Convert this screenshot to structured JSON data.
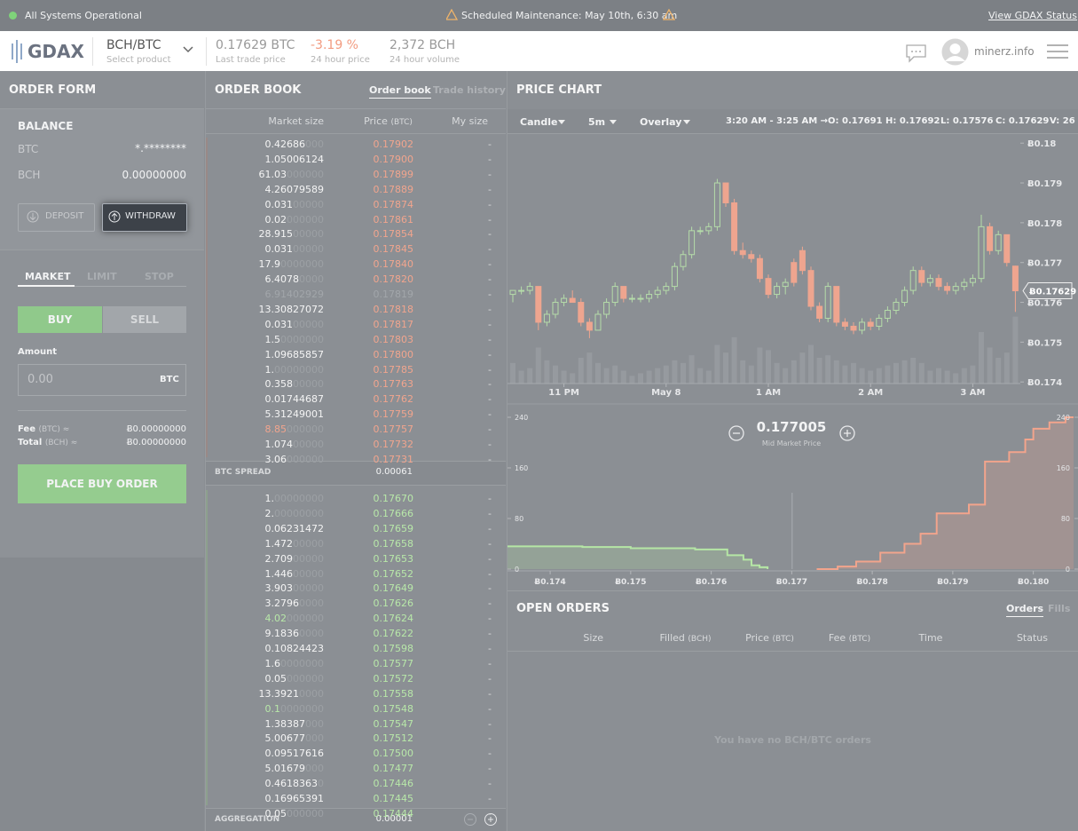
{
  "status_bar": {
    "status": "All Systems Operational",
    "maintenance": "Scheduled Maintenance: May 10th, 6:30 am",
    "link": "View GDAX Status"
  },
  "header": {
    "logo": "GDAX",
    "product": "BCH/BTC",
    "product_sub": "Select product",
    "last_price": "0.17629 BTC",
    "last_price_label": "Last trade price",
    "change": "-3.19 %",
    "change_label": "24 hour price",
    "volume": "2,372 BCH",
    "volume_label": "24 hour volume",
    "user": "minerz.info"
  },
  "order_form": {
    "title": "ORDER FORM",
    "balance_title": "BALANCE",
    "balances": [
      [
        "BTC",
        "*.********"
      ],
      [
        "BCH",
        "0.00000000"
      ]
    ],
    "deposit": "DEPOSIT",
    "withdraw": "WITHDRAW",
    "tabs": [
      "MARKET",
      "LIMIT",
      "STOP"
    ],
    "buy": "BUY",
    "sell": "SELL",
    "amount_label": "Amount",
    "amount_placeholder": "0.00",
    "amount_unit": "BTC",
    "fee_label": "Fee",
    "fee_unit": "(BTC) ≈",
    "fee": "Ƀ0.00000000",
    "total_label": "Total",
    "total_unit": "(BCH) ≈",
    "total": "Ƀ0.00000000",
    "place": "PLACE BUY ORDER"
  },
  "order_book": {
    "title": "ORDER BOOK",
    "tabs": [
      "Order book",
      "Trade history"
    ],
    "columns": [
      {
        "label": "Market size"
      },
      {
        "label": "Price",
        "unit": "(BTC)"
      },
      {
        "label": "My size"
      }
    ],
    "asks": [
      {
        "size": "0.42686000",
        "price": "0.17902",
        "my": "-"
      },
      {
        "size": "1.05006124",
        "price": "0.17900",
        "my": "-"
      },
      {
        "size": "61.03000000",
        "price": "0.17899",
        "my": "-"
      },
      {
        "size": "4.26079589",
        "price": "0.17889",
        "my": "-"
      },
      {
        "size": "0.03100000",
        "price": "0.17874",
        "my": "-"
      },
      {
        "size": "0.02000000",
        "price": "0.17861",
        "my": "-"
      },
      {
        "size": "28.91500000",
        "price": "0.17854",
        "my": "-"
      },
      {
        "size": "0.03100000",
        "price": "0.17845",
        "my": "-"
      },
      {
        "size": "17.90000000",
        "price": "0.17840",
        "my": "-"
      },
      {
        "size": "6.40780000",
        "price": "0.17820",
        "my": "-"
      },
      {
        "size": "6.91402929",
        "price": "0.17819",
        "my": "-",
        "faded": true
      },
      {
        "size": "13.30827072",
        "price": "0.17818",
        "my": "-"
      },
      {
        "size": "0.03100000",
        "price": "0.17817",
        "my": "-"
      },
      {
        "size": "1.50000000",
        "price": "0.17803",
        "my": "-"
      },
      {
        "size": "1.09685857",
        "price": "0.17800",
        "my": "-"
      },
      {
        "size": "1.00000000",
        "price": "0.17785",
        "my": "-"
      },
      {
        "size": "0.35800000",
        "price": "0.17763",
        "my": "-"
      },
      {
        "size": "0.01744687",
        "price": "0.17762",
        "my": "-"
      },
      {
        "size": "5.31249001",
        "price": "0.17759",
        "my": "-"
      },
      {
        "size": "8.85000000",
        "price": "0.17757",
        "my": "-",
        "highlight": true
      },
      {
        "size": "1.07400000",
        "price": "0.17732",
        "my": "-"
      },
      {
        "size": "3.06000000",
        "price": "0.17731",
        "my": "-"
      }
    ],
    "spread_label": "BTC SPREAD",
    "spread": "0.00061",
    "bids": [
      {
        "size": "1.00000000",
        "price": "0.17670",
        "my": "-"
      },
      {
        "size": "2.00000000",
        "price": "0.17666",
        "my": "-"
      },
      {
        "size": "0.06231472",
        "price": "0.17659",
        "my": "-"
      },
      {
        "size": "1.47200000",
        "price": "0.17658",
        "my": "-"
      },
      {
        "size": "2.70900000",
        "price": "0.17653",
        "my": "-"
      },
      {
        "size": "1.44600000",
        "price": "0.17652",
        "my": "-"
      },
      {
        "size": "3.90300000",
        "price": "0.17649",
        "my": "-"
      },
      {
        "size": "3.27960000",
        "price": "0.17626",
        "my": "-"
      },
      {
        "size": "4.02000000",
        "price": "0.17624",
        "my": "-",
        "highlight": true
      },
      {
        "size": "9.18360000",
        "price": "0.17622",
        "my": "-"
      },
      {
        "size": "0.10824423",
        "price": "0.17598",
        "my": "-"
      },
      {
        "size": "1.60000000",
        "price": "0.17577",
        "my": "-"
      },
      {
        "size": "0.05000000",
        "price": "0.17572",
        "my": "-"
      },
      {
        "size": "13.39210000",
        "price": "0.17558",
        "my": "-"
      },
      {
        "size": "0.10000000",
        "price": "0.17548",
        "my": "-",
        "highlight": true
      },
      {
        "size": "1.38387000",
        "price": "0.17547",
        "my": "-"
      },
      {
        "size": "5.00677000",
        "price": "0.17512",
        "my": "-"
      },
      {
        "size": "0.09517616",
        "price": "0.17500",
        "my": "-"
      },
      {
        "size": "5.01679000",
        "price": "0.17477",
        "my": "-"
      },
      {
        "size": "0.46183630",
        "price": "0.17446",
        "my": "-"
      },
      {
        "size": "0.16965391",
        "price": "0.17445",
        "my": "-"
      },
      {
        "size": "0.05000000",
        "price": "0.17444",
        "my": "-"
      }
    ],
    "aggregation_label": "AGGREGATION",
    "aggregation": "0.00001"
  },
  "price_chart": {
    "title": "PRICE CHART",
    "type": "candlestick",
    "toolbar": [
      "Candle",
      "5m",
      "Overlay"
    ],
    "range": "3:20 AM - 3:25 AM →",
    "ohlcv": [
      "O: 0.17691",
      "H: 0.17692",
      "L: 0.17576",
      "C: 0.17629",
      "V: 26"
    ],
    "up_color": "#b5dca9",
    "down_color": "#eea58f",
    "volume_color": "#9a9ea3",
    "ylim": [
      0.17396,
      0.18025
    ],
    "yticks": [
      {
        "value": 0.18,
        "label": "Ƀ0.18"
      },
      {
        "value": 0.179,
        "label": "Ƀ0.179"
      },
      {
        "value": 0.178,
        "label": "Ƀ0.178"
      },
      {
        "value": 0.177,
        "label": "Ƀ0.177"
      },
      {
        "value": 0.176,
        "label": "Ƀ0.176"
      },
      {
        "value": 0.175,
        "label": "Ƀ0.175"
      },
      {
        "value": 0.174,
        "label": "Ƀ0.174"
      }
    ],
    "last_price": {
      "value": 0.17629,
      "label": "Ƀ0.17629"
    },
    "xticks": [
      {
        "value": 6,
        "label": "11 PM"
      },
      {
        "value": 18,
        "label": "May 8"
      },
      {
        "value": 30,
        "label": "1 AM"
      },
      {
        "value": 42,
        "label": "2 AM"
      },
      {
        "value": 54,
        "label": "3 AM"
      }
    ],
    "candles": [
      [
        0.1762,
        0.1763,
        0.176,
        0.1763,
        8
      ],
      [
        0.1763,
        0.1764,
        0.1762,
        0.1763,
        5
      ],
      [
        0.1763,
        0.1765,
        0.1762,
        0.1764,
        6
      ],
      [
        0.1764,
        0.1764,
        0.1753,
        0.1755,
        14
      ],
      [
        0.1755,
        0.1758,
        0.1754,
        0.1757,
        9
      ],
      [
        0.1757,
        0.1761,
        0.1756,
        0.176,
        7
      ],
      [
        0.176,
        0.1762,
        0.1759,
        0.1761,
        5
      ],
      [
        0.1761,
        0.1763,
        0.176,
        0.176,
        4
      ],
      [
        0.176,
        0.1761,
        0.1754,
        0.1755,
        10
      ],
      [
        0.1755,
        0.1756,
        0.1751,
        0.1753,
        12
      ],
      [
        0.1753,
        0.1758,
        0.1753,
        0.1757,
        8
      ],
      [
        0.1757,
        0.1761,
        0.1756,
        0.176,
        6
      ],
      [
        0.176,
        0.1765,
        0.1759,
        0.1764,
        7
      ],
      [
        0.1764,
        0.1764,
        0.176,
        0.1761,
        5
      ],
      [
        0.1761,
        0.1762,
        0.176,
        0.1761,
        3
      ],
      [
        0.1761,
        0.1762,
        0.176,
        0.1761,
        4
      ],
      [
        0.1761,
        0.1763,
        0.176,
        0.1762,
        5
      ],
      [
        0.1762,
        0.1764,
        0.1761,
        0.1763,
        6
      ],
      [
        0.1763,
        0.1765,
        0.1762,
        0.1764,
        7
      ],
      [
        0.1764,
        0.177,
        0.1763,
        0.1769,
        9
      ],
      [
        0.1769,
        0.1773,
        0.1768,
        0.1772,
        8
      ],
      [
        0.1772,
        0.1779,
        0.1771,
        0.1778,
        11
      ],
      [
        0.1778,
        0.1779,
        0.1777,
        0.1778,
        6
      ],
      [
        0.1778,
        0.178,
        0.1777,
        0.1779,
        5
      ],
      [
        0.1779,
        0.1791,
        0.1778,
        0.179,
        15
      ],
      [
        0.179,
        0.179,
        0.1784,
        0.1785,
        12
      ],
      [
        0.1785,
        0.1786,
        0.1772,
        0.1773,
        18
      ],
      [
        0.1773,
        0.1775,
        0.1771,
        0.1772,
        9
      ],
      [
        0.1772,
        0.1773,
        0.177,
        0.1771,
        7
      ],
      [
        0.1771,
        0.1772,
        0.1765,
        0.1766,
        14
      ],
      [
        0.1766,
        0.1767,
        0.1761,
        0.1762,
        13
      ],
      [
        0.1762,
        0.1765,
        0.1761,
        0.1764,
        8
      ],
      [
        0.1764,
        0.1766,
        0.1762,
        0.1765,
        6
      ],
      [
        0.177,
        0.1771,
        0.1764,
        0.1765,
        9
      ],
      [
        0.1773,
        0.1774,
        0.1767,
        0.1768,
        12
      ],
      [
        0.1768,
        0.1769,
        0.1758,
        0.1759,
        15
      ],
      [
        0.1759,
        0.176,
        0.1755,
        0.1756,
        10
      ],
      [
        0.1756,
        0.1765,
        0.1755,
        0.1764,
        11
      ],
      [
        0.1764,
        0.1764,
        0.1754,
        0.1755,
        9
      ],
      [
        0.1755,
        0.1756,
        0.1753,
        0.1754,
        7
      ],
      [
        0.1754,
        0.1755,
        0.1752,
        0.1753,
        8
      ],
      [
        0.1753,
        0.1756,
        0.1752,
        0.1755,
        6
      ],
      [
        0.1755,
        0.1756,
        0.1753,
        0.1754,
        5
      ],
      [
        0.1754,
        0.1757,
        0.1753,
        0.1756,
        6
      ],
      [
        0.1756,
        0.1759,
        0.1755,
        0.1758,
        7
      ],
      [
        0.1758,
        0.1761,
        0.1757,
        0.176,
        8
      ],
      [
        0.176,
        0.1764,
        0.1759,
        0.1763,
        9
      ],
      [
        0.1763,
        0.1769,
        0.1762,
        0.1768,
        10
      ],
      [
        0.1768,
        0.1769,
        0.1764,
        0.1765,
        8
      ],
      [
        0.1765,
        0.1767,
        0.1764,
        0.1766,
        5
      ],
      [
        0.1766,
        0.1767,
        0.1763,
        0.1764,
        6
      ],
      [
        0.1764,
        0.1765,
        0.1762,
        0.1763,
        5
      ],
      [
        0.1763,
        0.1765,
        0.1762,
        0.1764,
        4
      ],
      [
        0.1764,
        0.1766,
        0.1763,
        0.1765,
        6
      ],
      [
        0.1765,
        0.1767,
        0.1764,
        0.1766,
        7
      ],
      [
        0.1766,
        0.1782,
        0.1765,
        0.1779,
        20
      ],
      [
        0.1779,
        0.178,
        0.1772,
        0.1773,
        14
      ],
      [
        0.1773,
        0.1778,
        0.1772,
        0.1777,
        10
      ],
      [
        0.1777,
        0.1777,
        0.1769,
        0.177,
        12
      ],
      [
        0.17691,
        0.17692,
        0.17576,
        0.17629,
        26
      ]
    ]
  },
  "depth_chart": {
    "type": "depth",
    "mid_price": "0.177005",
    "mid_label": "Mid Market Price",
    "xlim": [
      0.17347,
      0.1805
    ],
    "xticks": [
      {
        "value": 0.174,
        "label": "Ƀ0.174"
      },
      {
        "value": 0.175,
        "label": "Ƀ0.175"
      },
      {
        "value": 0.176,
        "label": "Ƀ0.176"
      },
      {
        "value": 0.177,
        "label": "Ƀ0.177"
      },
      {
        "value": 0.178,
        "label": "Ƀ0.178"
      },
      {
        "value": 0.179,
        "label": "Ƀ0.179"
      },
      {
        "value": 0.18,
        "label": "Ƀ0.180"
      }
    ],
    "ylim": [
      0,
      240
    ],
    "yticks": [
      0,
      80,
      160,
      240
    ],
    "bids": {
      "color": "#b5e6a5",
      "points": [
        [
          0.17347,
          36
        ],
        [
          0.1744,
          35
        ],
        [
          0.175,
          33
        ],
        [
          0.1758,
          31
        ],
        [
          0.1762,
          22
        ],
        [
          0.1764,
          15
        ],
        [
          0.1765,
          6
        ],
        [
          0.1766,
          3
        ],
        [
          0.1767,
          0
        ]
      ]
    },
    "asks": {
      "color": "#f2a48c",
      "points": [
        [
          0.17731,
          0
        ],
        [
          0.17757,
          4
        ],
        [
          0.1778,
          12
        ],
        [
          0.1781,
          26
        ],
        [
          0.1784,
          40
        ],
        [
          0.1786,
          56
        ],
        [
          0.1788,
          88
        ],
        [
          0.1792,
          102
        ],
        [
          0.1794,
          170
        ],
        [
          0.1797,
          185
        ],
        [
          0.1799,
          205
        ],
        [
          0.18,
          222
        ],
        [
          0.1802,
          232
        ],
        [
          0.1804,
          240
        ],
        [
          0.1805,
          240
        ]
      ]
    }
  },
  "open_orders": {
    "title": "OPEN ORDERS",
    "tabs": [
      "Orders",
      "Fills"
    ],
    "columns": [
      {
        "label": "Size"
      },
      {
        "label": "Filled",
        "unit": "(BCH)"
      },
      {
        "label": "Price",
        "unit": "(BTC)"
      },
      {
        "label": "Fee",
        "unit": "(BTC)"
      },
      {
        "label": "Time"
      },
      {
        "label": "Status"
      }
    ],
    "empty": "You have no BCH/BTC orders"
  }
}
